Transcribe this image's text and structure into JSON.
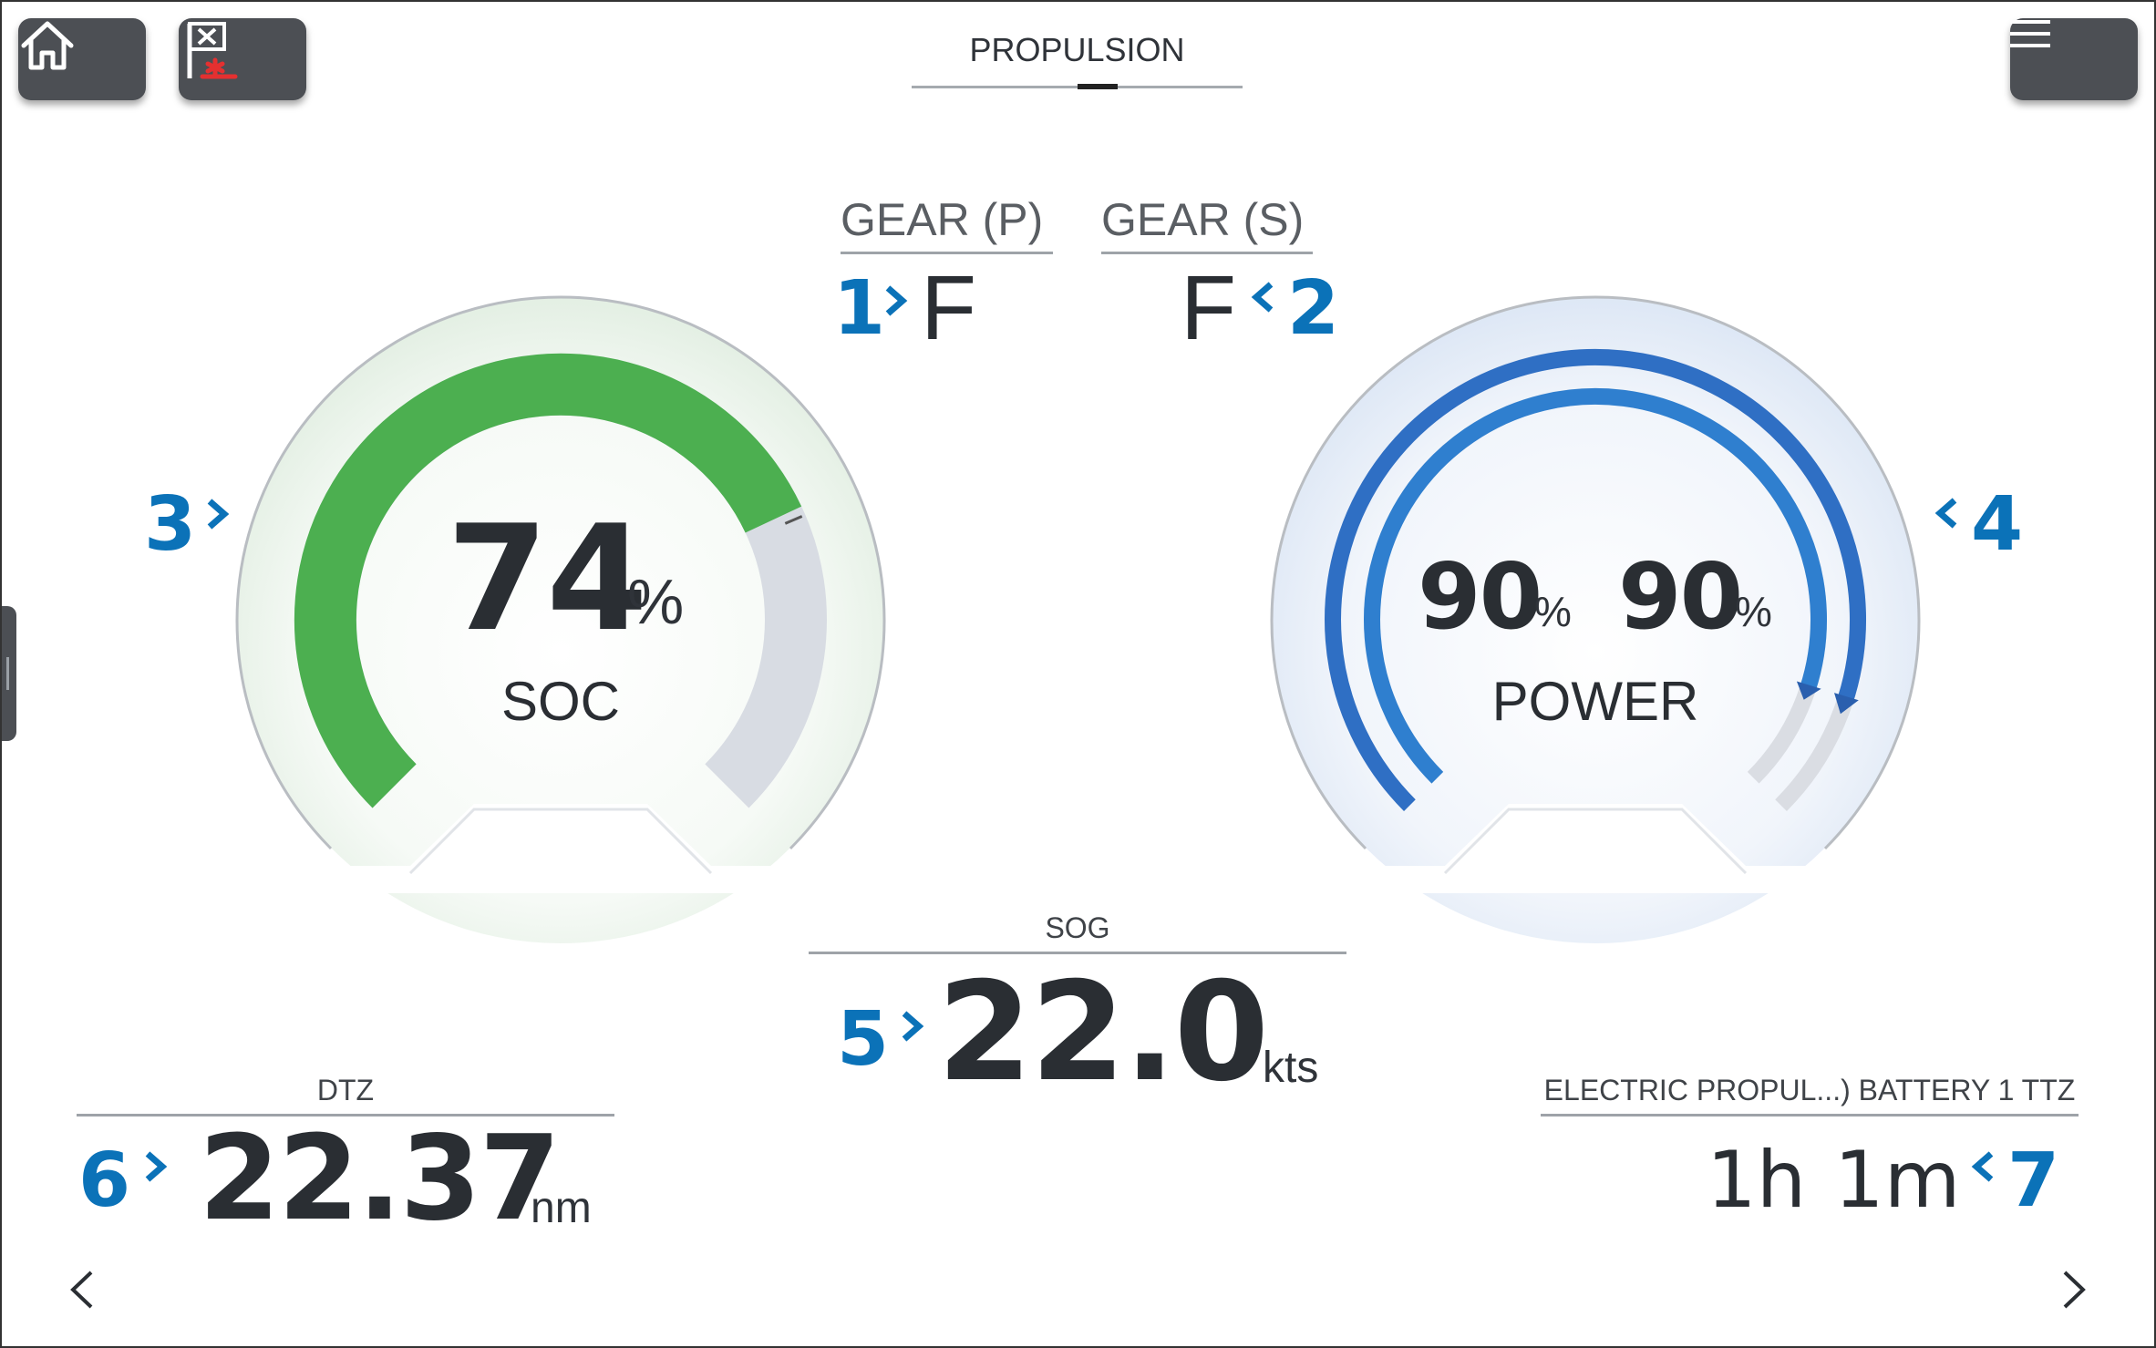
{
  "header": {
    "title": "PROPULSION"
  },
  "toolbar": {
    "home_icon": "home-icon",
    "waypoint_icon": "mob-flag-icon",
    "menu_icon": "hamburger-menu-icon"
  },
  "gear": {
    "port": {
      "label": "GEAR (P)",
      "value": "F",
      "callout": "1"
    },
    "starboard": {
      "label": "GEAR (S)",
      "value": "F",
      "callout": "2"
    }
  },
  "soc_gauge": {
    "value": "74",
    "unit": "%",
    "label": "SOC",
    "callout": "3",
    "fill_fraction": 0.74,
    "color": "#4caf50"
  },
  "power_gauge": {
    "port_value": "90",
    "port_unit": "%",
    "starboard_value": "90",
    "starboard_unit": "%",
    "label": "POWER",
    "callout": "4",
    "fill_fraction": 0.9,
    "color": "#2f6fc4"
  },
  "sog": {
    "label": "SOG",
    "value": "22.0",
    "unit": "kts",
    "callout": "5"
  },
  "dtz": {
    "label": "DTZ",
    "value": "22.37",
    "unit": "nm",
    "callout": "6"
  },
  "ttz": {
    "label": "ELECTRIC PROPUL...) BATTERY 1 TTZ",
    "hours": "1h",
    "minutes": "1m",
    "callout": "7"
  },
  "nav": {
    "prev_icon": "chevron-left-icon",
    "next_icon": "chevron-right-icon"
  },
  "colors": {
    "callout": "#0b72b8",
    "button_bg": "#4c4f54"
  }
}
